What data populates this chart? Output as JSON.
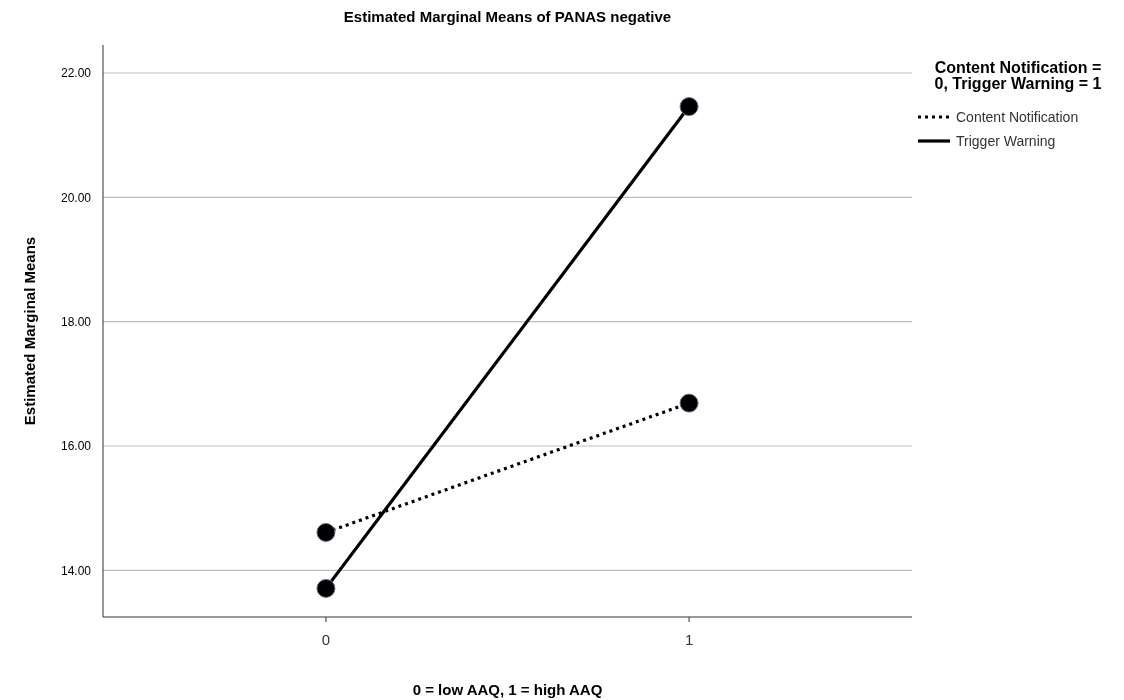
{
  "chart_data": {
    "type": "line",
    "title": "Estimated Marginal Means of PANAS negative",
    "xlabel": "0 = low AAQ, 1 = high AAQ",
    "ylabel": "Estimated Marginal Means",
    "legend_title": "Content Notification = 0, Trigger Warning = 1",
    "categories": [
      "0",
      "1"
    ],
    "series": [
      {
        "name": "Content Notification",
        "color": "#000000",
        "values": [
          14.61,
          16.69
        ],
        "line_style": "dotted"
      },
      {
        "name": "Trigger Warning",
        "color": "#000000",
        "values": [
          13.71,
          21.46
        ],
        "line_style": "solid"
      }
    ],
    "ylim": [
      13.25,
      22.45
    ],
    "yticks": [
      {
        "value": 14,
        "label": "14.00"
      },
      {
        "value": 16,
        "label": "16.00"
      },
      {
        "value": 18,
        "label": "18.00"
      },
      {
        "value": 20,
        "label": "20.00"
      },
      {
        "value": 22,
        "label": "22.00"
      }
    ],
    "grid": "y",
    "legend": "top right",
    "marker": "circle"
  }
}
